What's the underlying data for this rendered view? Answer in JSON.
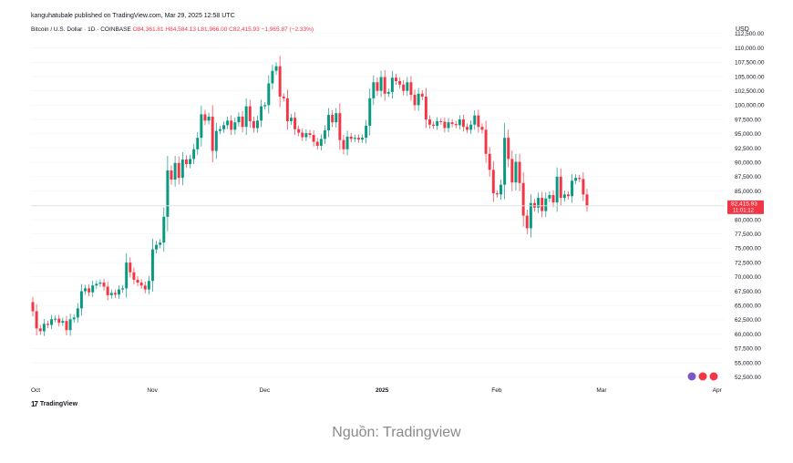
{
  "header": {
    "publisher": "kanguhatubale published on TradingView.com, Mar 29, 2025 12:58 UTC",
    "symbol": "Bitcoin / U.S. Dollar · 1D · COINBASE",
    "ohlc": "O84,361.81 H84,584.13 L81,966.00 C82,415.93 −1,965.87 (−2.33%)",
    "currency": "USD"
  },
  "last_price": {
    "value": "82,415.93",
    "countdown": "11:01:12"
  },
  "brand": {
    "logo_text": "TradingView",
    "mark": "17"
  },
  "caption": "Nguồn: Tradingview",
  "colors": {
    "up": "#089981",
    "down": "#f23645",
    "grid": "#f0f3fa",
    "priceline": "#e3e3e3"
  },
  "chart_data": {
    "type": "candlestick",
    "title": "Bitcoin / U.S. Dollar · 1D · COINBASE",
    "xlabel": "",
    "ylabel": "USD",
    "ylim": [
      51500,
      112000
    ],
    "y_ticks": [
      "52,500.00",
      "55,000.00",
      "57,500.00",
      "60,000.00",
      "62,500.00",
      "65,000.00",
      "67,500.00",
      "70,000.00",
      "72,500.00",
      "75,000.00",
      "77,500.00",
      "80,000.00",
      "82,500.00",
      "85,000.00",
      "87,500.00",
      "90,000.00",
      "92,500.00",
      "95,000.00",
      "97,500.00",
      "100,000.00",
      "102,500.00",
      "105,000.00",
      "107,500.00",
      "110,000.00",
      "112,500.00"
    ],
    "x_ticks": [
      {
        "label": "Oct",
        "index": 0
      },
      {
        "label": "Nov",
        "index": 31
      },
      {
        "label": "Dec",
        "index": 61
      },
      {
        "label": "2025",
        "index": 92
      },
      {
        "label": "Feb",
        "index": 123
      },
      {
        "label": "Mar",
        "index": 151
      },
      {
        "label": "Apr",
        "index": 182
      }
    ],
    "series": [
      {
        "values": [
          [
            0,
            65600,
            64000
          ],
          [
            1,
            64000,
            61000
          ],
          [
            2,
            61000,
            60500
          ],
          [
            3,
            60500,
            61800
          ],
          [
            4,
            61800,
            61600
          ],
          [
            5,
            61600,
            62600
          ],
          [
            6,
            62600,
            62700
          ],
          [
            7,
            62700,
            62000
          ],
          [
            8,
            62000,
            62300
          ],
          [
            9,
            62300,
            60700
          ],
          [
            10,
            60700,
            62600
          ],
          [
            11,
            62600,
            62900
          ],
          [
            12,
            62900,
            64500
          ],
          [
            13,
            64500,
            67500
          ],
          [
            14,
            67500,
            68000
          ],
          [
            15,
            68000,
            67300
          ],
          [
            16,
            67300,
            68500
          ],
          [
            17,
            68500,
            68800
          ],
          [
            18,
            68800,
            69000
          ],
          [
            19,
            69000,
            68300
          ],
          [
            20,
            68300,
            66800
          ],
          [
            21,
            66800,
            67200
          ],
          [
            22,
            67200,
            66900
          ],
          [
            23,
            66900,
            67800
          ],
          [
            24,
            67800,
            68000
          ],
          [
            25,
            68000,
            72500
          ],
          [
            26,
            72500,
            70800
          ],
          [
            27,
            70800,
            69500
          ],
          [
            28,
            69500,
            69000
          ],
          [
            29,
            69000,
            68500
          ],
          [
            30,
            68500,
            67800
          ],
          [
            31,
            67800,
            69300
          ],
          [
            32,
            69300,
            74800
          ],
          [
            33,
            74800,
            75600
          ],
          [
            34,
            75600,
            76000
          ],
          [
            35,
            76000,
            80500
          ],
          [
            36,
            80500,
            88600
          ],
          [
            37,
            88600,
            87000
          ],
          [
            38,
            87000,
            89900
          ],
          [
            39,
            89900,
            87300
          ],
          [
            40,
            87300,
            90500
          ],
          [
            41,
            90500,
            89700
          ],
          [
            42,
            89700,
            90600
          ],
          [
            43,
            90600,
            92300
          ],
          [
            44,
            92300,
            94300
          ],
          [
            45,
            94300,
            98400
          ],
          [
            46,
            98400,
            97300
          ],
          [
            47,
            97300,
            98000
          ],
          [
            48,
            98000,
            92000
          ],
          [
            49,
            92000,
            95500
          ],
          [
            50,
            95500,
            95800
          ],
          [
            51,
            95800,
            96500
          ],
          [
            52,
            96500,
            97300
          ],
          [
            53,
            97300,
            95700
          ],
          [
            54,
            95700,
            97000
          ],
          [
            55,
            97000,
            98000
          ],
          [
            56,
            98000,
            96200
          ],
          [
            57,
            96200,
            99800
          ],
          [
            58,
            99800,
            97200
          ],
          [
            59,
            97200,
            96000
          ],
          [
            60,
            96000,
            97300
          ],
          [
            61,
            97300,
            99800
          ],
          [
            62,
            99800,
            100000
          ],
          [
            63,
            100000,
            103800
          ],
          [
            64,
            103800,
            106000
          ],
          [
            65,
            106000,
            106800
          ],
          [
            66,
            106800,
            101500
          ],
          [
            67,
            101500,
            101200
          ],
          [
            68,
            101200,
            97200
          ],
          [
            69,
            97200,
            97800
          ],
          [
            70,
            97800,
            95800
          ],
          [
            71,
            95800,
            95200
          ],
          [
            72,
            95200,
            94400
          ],
          [
            73,
            94400,
            95100
          ],
          [
            74,
            95100,
            94800
          ],
          [
            75,
            94800,
            93600
          ],
          [
            76,
            93600,
            92900
          ],
          [
            77,
            92900,
            94100
          ],
          [
            78,
            94100,
            95600
          ],
          [
            79,
            95600,
            98300
          ],
          [
            80,
            98300,
            97000
          ],
          [
            81,
            97000,
            98600
          ],
          [
            82,
            98600,
            93900
          ],
          [
            83,
            93900,
            92300
          ],
          [
            84,
            92300,
            94500
          ],
          [
            85,
            94500,
            94100
          ],
          [
            86,
            94100,
            94300
          ],
          [
            87,
            94300,
            94000
          ],
          [
            88,
            94000,
            94300
          ],
          [
            89,
            94300,
            96400
          ],
          [
            90,
            96400,
            101200
          ],
          [
            91,
            101200,
            104000
          ],
          [
            92,
            104000,
            102500
          ],
          [
            93,
            102500,
            104900
          ],
          [
            94,
            104900,
            102000
          ],
          [
            95,
            102000,
            102300
          ],
          [
            96,
            102300,
            104800
          ],
          [
            97,
            104800,
            104200
          ],
          [
            98,
            104200,
            103600
          ],
          [
            99,
            103600,
            102500
          ],
          [
            100,
            102500,
            104000
          ],
          [
            101,
            104000,
            101800
          ],
          [
            102,
            101800,
            100000
          ],
          [
            103,
            100000,
            102000
          ],
          [
            104,
            102000,
            101500
          ],
          [
            105,
            101500,
            97500
          ],
          [
            106,
            97500,
            96600
          ],
          [
            107,
            96600,
            96400
          ],
          [
            108,
            96400,
            97200
          ],
          [
            109,
            97200,
            97100
          ],
          [
            110,
            97100,
            96000
          ],
          [
            111,
            96000,
            97000
          ],
          [
            112,
            97000,
            96700
          ],
          [
            113,
            96700,
            96500
          ],
          [
            114,
            96500,
            97500
          ],
          [
            115,
            97500,
            96200
          ],
          [
            116,
            96200,
            95700
          ],
          [
            117,
            95700,
            96600
          ],
          [
            118,
            96600,
            98200
          ],
          [
            119,
            98200,
            96200
          ],
          [
            120,
            96200,
            95700
          ],
          [
            121,
            95700,
            91500
          ],
          [
            122,
            91500,
            88700
          ],
          [
            123,
            88700,
            84600
          ],
          [
            124,
            84600,
            84400
          ],
          [
            125,
            84400,
            86100
          ],
          [
            126,
            86100,
            94300
          ],
          [
            127,
            94300,
            90600
          ],
          [
            128,
            90600,
            86500
          ],
          [
            129,
            86500,
            90100
          ],
          [
            130,
            90100,
            86400
          ],
          [
            131,
            86400,
            80700
          ],
          [
            132,
            80700,
            78500
          ],
          [
            133,
            78500,
            82900
          ],
          [
            134,
            82900,
            82100
          ],
          [
            135,
            82100,
            83800
          ],
          [
            136,
            83800,
            81500
          ],
          [
            137,
            81500,
            83700
          ],
          [
            138,
            83700,
            84300
          ],
          [
            139,
            84300,
            83000
          ],
          [
            140,
            83000,
            87500
          ],
          [
            141,
            87500,
            83800
          ],
          [
            142,
            83800,
            84400
          ],
          [
            143,
            84400,
            84100
          ],
          [
            144,
            84100,
            86800
          ],
          [
            145,
            86800,
            87300
          ],
          [
            146,
            87300,
            87100
          ],
          [
            147,
            87100,
            84400
          ],
          [
            148,
            84400,
            82400
          ]
        ]
      }
    ],
    "last_close": 82415.93
  }
}
